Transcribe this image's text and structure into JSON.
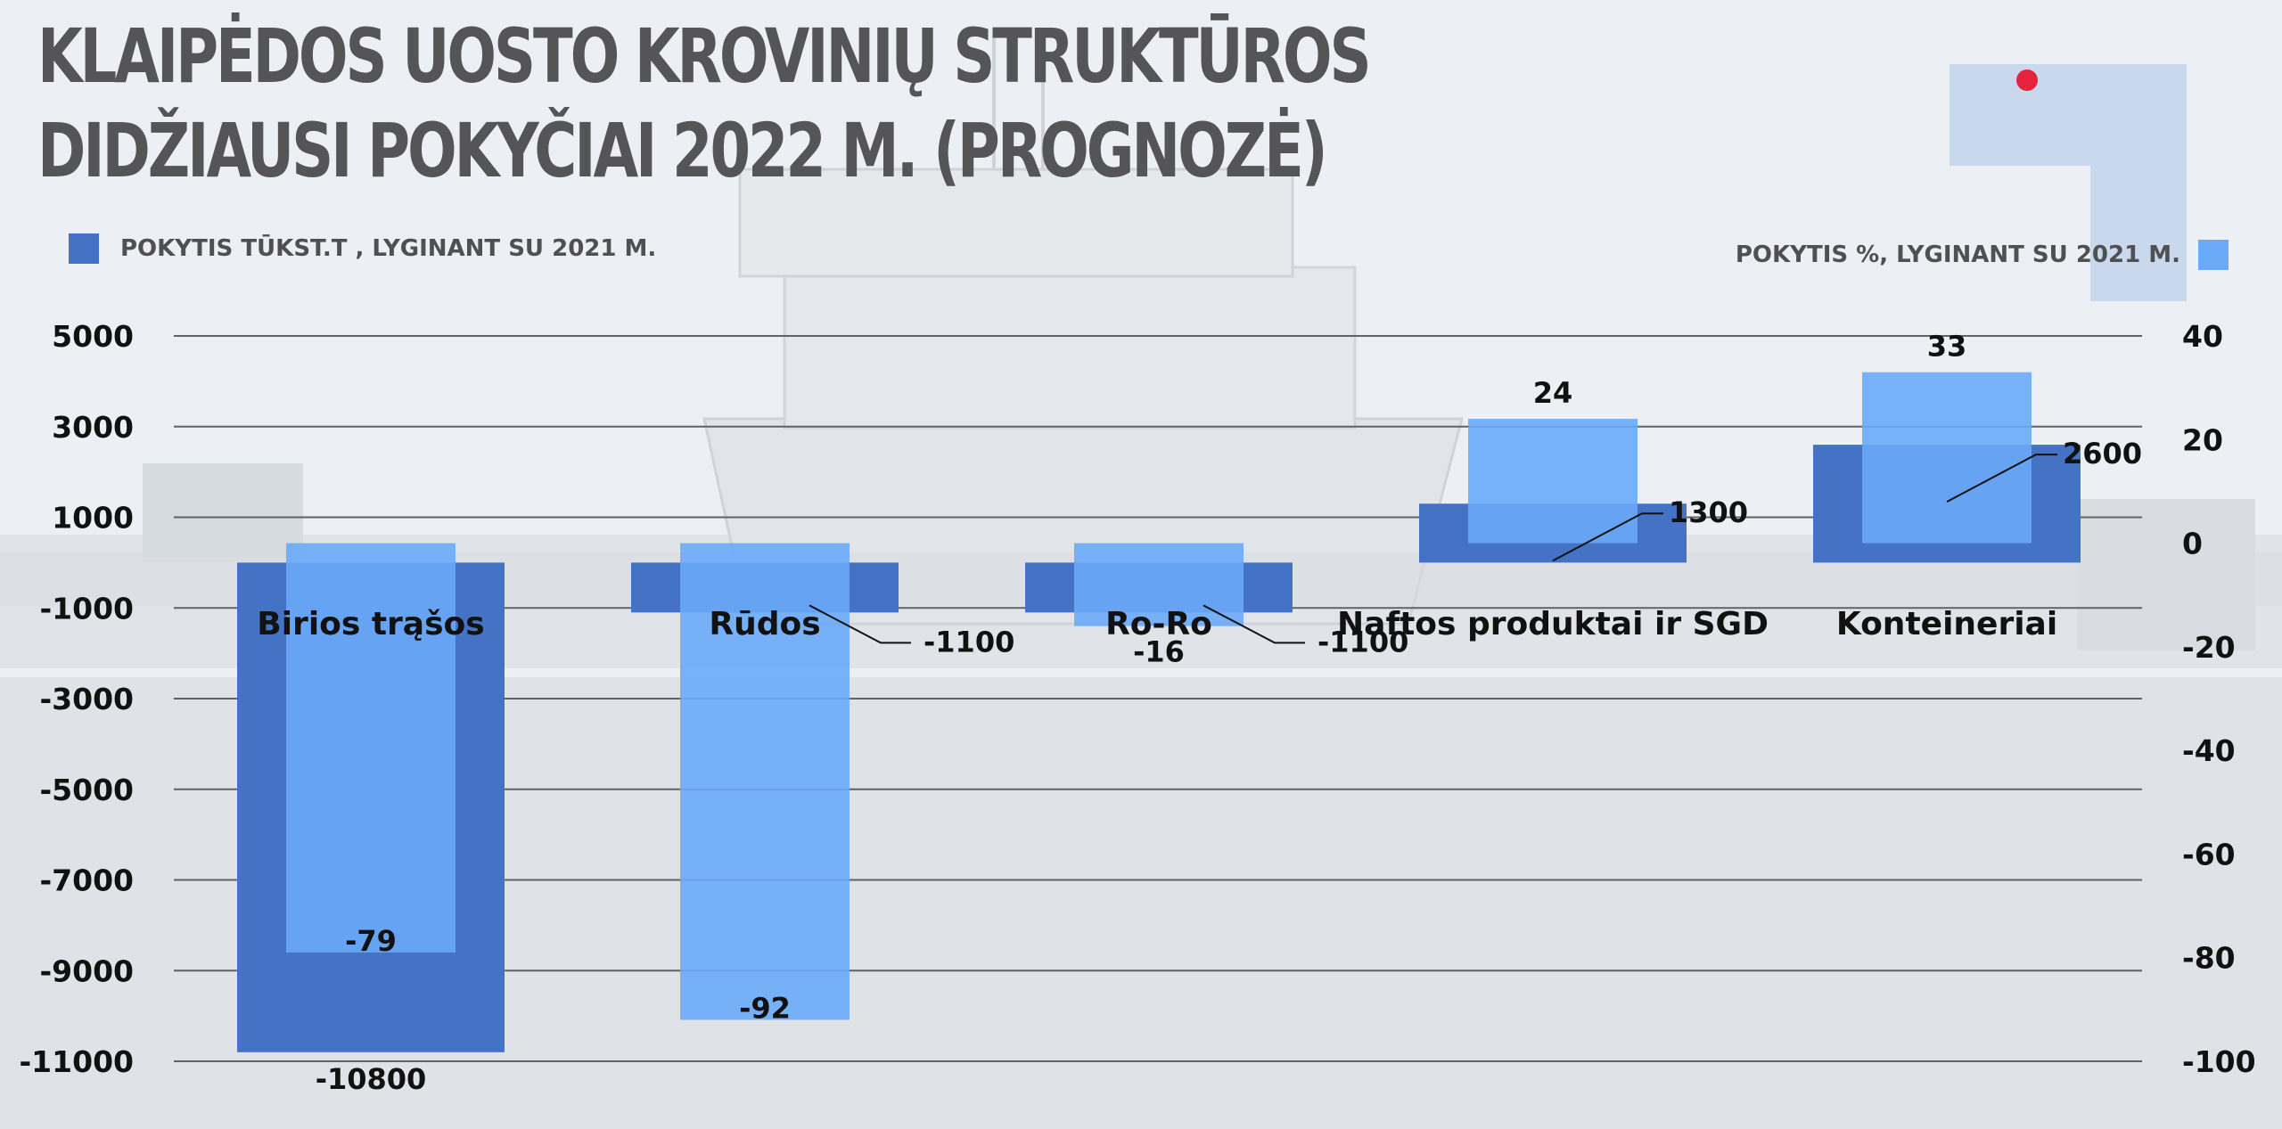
{
  "title": "KLAIPĖDOS UOSTO KROVINIŲ STRUKTŪROS DIDŽIAUSI POKYČIAI 2022 M. (PROGNOZĖ)",
  "colors": {
    "title": "#555558",
    "accent_red": "#e5233c",
    "tonnes_series": "#4472c4",
    "percent_series": "#6aaaf8",
    "gridline": "#5f6266",
    "text": "#111111"
  },
  "legend": {
    "left_label": "POKYTIS TŪKST.T , LYGINANT SU 2021 M.",
    "right_label": "POKYTIS %, LYGINANT SU 2021 M."
  },
  "chart_data": {
    "type": "bar",
    "title": "KLAIPĖDOS UOSTO KROVINIŲ STRUKTŪROS DIDŽIAUSI POKYČIAI 2022 M. (PROGNOZĖ)",
    "categories": [
      "Birios trąšos",
      "Rūdos",
      "Ro-Ro",
      "Naftos produktai ir SGD",
      "Konteineriai"
    ],
    "series": [
      {
        "name": "POKYTIS TŪKST.T , LYGINANT SU 2021 M.",
        "axis": "left",
        "color": "#4472c4",
        "values": [
          -10800,
          -1100,
          -1100,
          1300,
          2600
        ],
        "labels": [
          "-10800",
          "-1100",
          "-1100",
          "1300",
          "2600"
        ]
      },
      {
        "name": "POKYTIS %, LYGINANT SU 2021 M.",
        "axis": "right",
        "color": "#6aaaf8",
        "values": [
          -79,
          -92,
          -16,
          24,
          33
        ],
        "labels": [
          "-79",
          "-92",
          "-16",
          "24",
          "33"
        ]
      }
    ],
    "y_left": {
      "ylim": [
        -11000,
        5000
      ],
      "ticks": [
        5000,
        3000,
        1000,
        -1000,
        -3000,
        -5000,
        -7000,
        -9000,
        -11000
      ],
      "tick_labels": [
        "5000",
        "3000",
        "1000",
        "-1000",
        "-3000",
        "-5000",
        "-7000",
        "-9000",
        "-11000"
      ]
    },
    "y_right": {
      "ylim": [
        -100,
        40
      ],
      "ticks": [
        40,
        20,
        0,
        -20,
        -40,
        -60,
        -80,
        -100
      ],
      "tick_labels": [
        "40",
        "20",
        "0",
        "-20",
        "-40",
        "-60",
        "-80",
        "-100"
      ]
    },
    "grid": true,
    "legend_left": "top-left",
    "legend_right": "top-right"
  }
}
